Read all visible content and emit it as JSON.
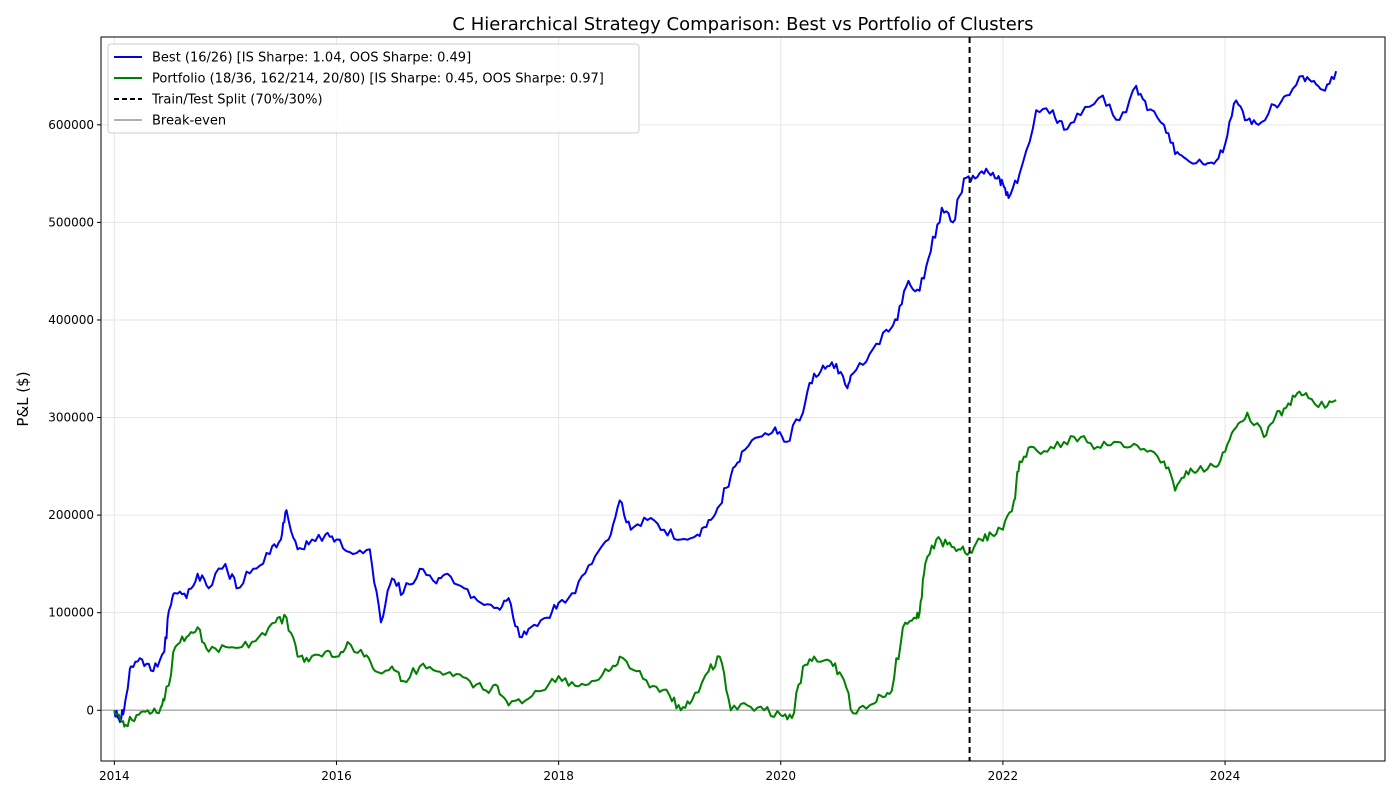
{
  "chart_data": {
    "type": "line",
    "title": "C Hierarchical Strategy Comparison: Best vs Portfolio of Clusters",
    "xlabel": "",
    "ylabel": "P&L ($)",
    "xlim": [
      2013.88,
      2025.44
    ],
    "ylim": [
      -52000,
      690000
    ],
    "x_ticks": [
      2014,
      2016,
      2018,
      2020,
      2022,
      2024
    ],
    "x_tick_labels": [
      "2014",
      "2016",
      "2018",
      "2020",
      "2022",
      "2024"
    ],
    "y_ticks": [
      0,
      100000,
      200000,
      300000,
      400000,
      500000,
      600000
    ],
    "y_tick_labels": [
      "0",
      "100000",
      "200000",
      "300000",
      "400000",
      "500000",
      "600000"
    ],
    "grid": true,
    "legend_position": "top-left",
    "split": {
      "x": 2021.7,
      "label": "Train/Test Split (70%/30%)",
      "color": "#000000",
      "style": "dashed"
    },
    "baseline": {
      "y": 0,
      "label": "Break-even",
      "color": "#b0b0b0"
    },
    "series": [
      {
        "name": "Best (16/26) [IS Sharpe: 1.04, OOS Sharpe: 0.49]",
        "color": "#0000ee",
        "x": [
          2014.0,
          2014.05,
          2014.1,
          2014.15,
          2014.25,
          2014.35,
          2014.45,
          2014.5,
          2014.55,
          2014.65,
          2014.75,
          2014.85,
          2015.0,
          2015.1,
          2015.25,
          2015.4,
          2015.5,
          2015.55,
          2015.65,
          2015.75,
          2015.9,
          2016.0,
          2016.15,
          2016.3,
          2016.4,
          2016.5,
          2016.6,
          2016.75,
          2016.9,
          2017.0,
          2017.15,
          2017.3,
          2017.45,
          2017.55,
          2017.65,
          2017.75,
          2017.9,
          2018.0,
          2018.15,
          2018.3,
          2018.45,
          2018.55,
          2018.65,
          2018.8,
          2018.95,
          2019.1,
          2019.25,
          2019.35,
          2019.45,
          2019.55,
          2019.65,
          2019.8,
          2019.95,
          2020.05,
          2020.2,
          2020.3,
          2020.4,
          2020.5,
          2020.6,
          2020.65,
          2020.8,
          2020.95,
          2021.05,
          2021.15,
          2021.25,
          2021.35,
          2021.45,
          2021.55,
          2021.65,
          2021.75,
          2021.85,
          2021.95,
          2022.0,
          2022.05,
          2022.15,
          2022.3,
          2022.45,
          2022.55,
          2022.7,
          2022.9,
          2023.05,
          2023.2,
          2023.3,
          2023.45,
          2023.55,
          2023.65,
          2023.8,
          2023.9,
          2024.0,
          2024.1,
          2024.2,
          2024.3,
          2024.45,
          2024.55,
          2024.7,
          2024.8,
          2024.9,
          2025.0
        ],
        "y": [
          0,
          -12000,
          10000,
          45000,
          52000,
          40000,
          60000,
          105000,
          120000,
          115000,
          140000,
          125000,
          150000,
          125000,
          145000,
          160000,
          175000,
          205000,
          165000,
          170000,
          180000,
          175000,
          160000,
          165000,
          90000,
          135000,
          120000,
          145000,
          130000,
          140000,
          125000,
          110000,
          105000,
          115000,
          75000,
          85000,
          95000,
          110000,
          120000,
          150000,
          175000,
          215000,
          185000,
          195000,
          185000,
          175000,
          180000,
          195000,
          210000,
          240000,
          265000,
          280000,
          290000,
          275000,
          305000,
          345000,
          350000,
          355000,
          330000,
          345000,
          365000,
          390000,
          400000,
          440000,
          430000,
          470000,
          515000,
          500000,
          545000,
          545000,
          555000,
          545000,
          540000,
          525000,
          550000,
          615000,
          615000,
          595000,
          610000,
          630000,
          605000,
          640000,
          615000,
          600000,
          570000,
          565000,
          560000,
          560000,
          580000,
          625000,
          605000,
          600000,
          620000,
          630000,
          650000,
          645000,
          635000,
          655000
        ]
      },
      {
        "name": "Portfolio (18/36, 162/214, 20/80) [IS Sharpe: 0.45, OOS Sharpe: 0.97]",
        "color": "#008000",
        "x": [
          2014.0,
          2014.05,
          2014.1,
          2014.2,
          2014.3,
          2014.4,
          2014.45,
          2014.55,
          2014.65,
          2014.75,
          2014.85,
          2015.0,
          2015.15,
          2015.3,
          2015.45,
          2015.55,
          2015.65,
          2015.75,
          2015.9,
          2016.0,
          2016.1,
          2016.25,
          2016.35,
          2016.5,
          2016.6,
          2016.75,
          2016.9,
          2017.05,
          2017.2,
          2017.35,
          2017.45,
          2017.55,
          2017.7,
          2017.85,
          2018.0,
          2018.15,
          2018.3,
          2018.45,
          2018.55,
          2018.7,
          2018.85,
          2019.0,
          2019.1,
          2019.2,
          2019.35,
          2019.45,
          2019.55,
          2019.7,
          2019.85,
          2020.0,
          2020.1,
          2020.2,
          2020.3,
          2020.45,
          2020.55,
          2020.65,
          2020.8,
          2020.9,
          2021.0,
          2021.1,
          2021.2,
          2021.25,
          2021.3,
          2021.4,
          2021.5,
          2021.6,
          2021.7,
          2021.8,
          2021.9,
          2022.0,
          2022.1,
          2022.15,
          2022.25,
          2022.4,
          2022.55,
          2022.7,
          2022.85,
          2023.0,
          2023.15,
          2023.3,
          2023.45,
          2023.55,
          2023.65,
          2023.75,
          2023.9,
          2024.0,
          2024.1,
          2024.2,
          2024.35,
          2024.45,
          2024.55,
          2024.65,
          2024.75,
          2024.9,
          2025.0
        ],
        "y": [
          0,
          -8000,
          -15000,
          -5000,
          0,
          -3000,
          10000,
          65000,
          75000,
          85000,
          60000,
          65000,
          65000,
          75000,
          90000,
          95000,
          55000,
          50000,
          60000,
          55000,
          70000,
          55000,
          40000,
          45000,
          30000,
          45000,
          40000,
          35000,
          30000,
          20000,
          25000,
          5000,
          10000,
          20000,
          35000,
          25000,
          30000,
          40000,
          55000,
          40000,
          25000,
          15000,
          0,
          10000,
          40000,
          55000,
          0,
          5000,
          0,
          -5000,
          -8000,
          45000,
          55000,
          50000,
          35000,
          -3000,
          5000,
          15000,
          20000,
          85000,
          95000,
          100000,
          150000,
          175000,
          170000,
          165000,
          162000,
          175000,
          180000,
          185000,
          215000,
          255000,
          270000,
          265000,
          275000,
          280000,
          270000,
          275000,
          270000,
          265000,
          255000,
          225000,
          245000,
          245000,
          250000,
          265000,
          290000,
          305000,
          280000,
          300000,
          310000,
          325000,
          320000,
          310000,
          318000
        ]
      }
    ]
  }
}
